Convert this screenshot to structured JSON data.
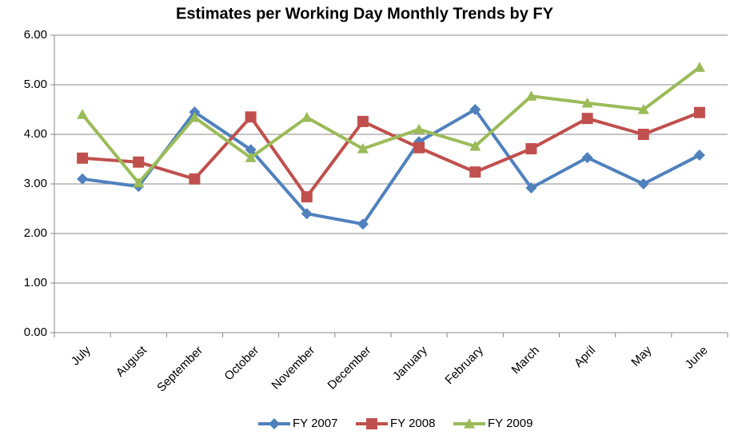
{
  "chart_data": {
    "type": "line",
    "title": "Estimates per Working Day  Monthly Trends by FY",
    "categories": [
      "July",
      "August",
      "September",
      "October",
      "November",
      "December",
      "January",
      "February",
      "March",
      "April",
      "May",
      "June"
    ],
    "series": [
      {
        "name": "FY 2007",
        "color": "#4f81bd",
        "marker": "diamond",
        "values": [
          3.1,
          2.95,
          4.45,
          3.69,
          2.4,
          2.19,
          3.85,
          4.5,
          2.92,
          3.53,
          3.0,
          3.58
        ]
      },
      {
        "name": "FY 2008",
        "color": "#c0504d",
        "marker": "square",
        "values": [
          3.52,
          3.44,
          3.1,
          4.35,
          2.74,
          4.26,
          3.73,
          3.24,
          3.71,
          4.32,
          4.0,
          4.44
        ]
      },
      {
        "name": "FY 2009",
        "color": "#9bbb59",
        "marker": "triangle",
        "values": [
          4.4,
          3.02,
          4.34,
          3.53,
          4.34,
          3.71,
          4.1,
          3.76,
          4.77,
          4.63,
          4.5,
          5.35
        ]
      }
    ],
    "ylim": [
      0,
      6
    ],
    "yticks": [
      {
        "value": 0,
        "label": "0.00"
      },
      {
        "value": 1,
        "label": "1.00"
      },
      {
        "value": 2,
        "label": "2.00"
      },
      {
        "value": 3,
        "label": "3.00"
      },
      {
        "value": 4,
        "label": "4.00"
      },
      {
        "value": 5,
        "label": "5.00"
      },
      {
        "value": 6,
        "label": "6.00"
      }
    ],
    "grid": true,
    "legend": "bottom"
  }
}
